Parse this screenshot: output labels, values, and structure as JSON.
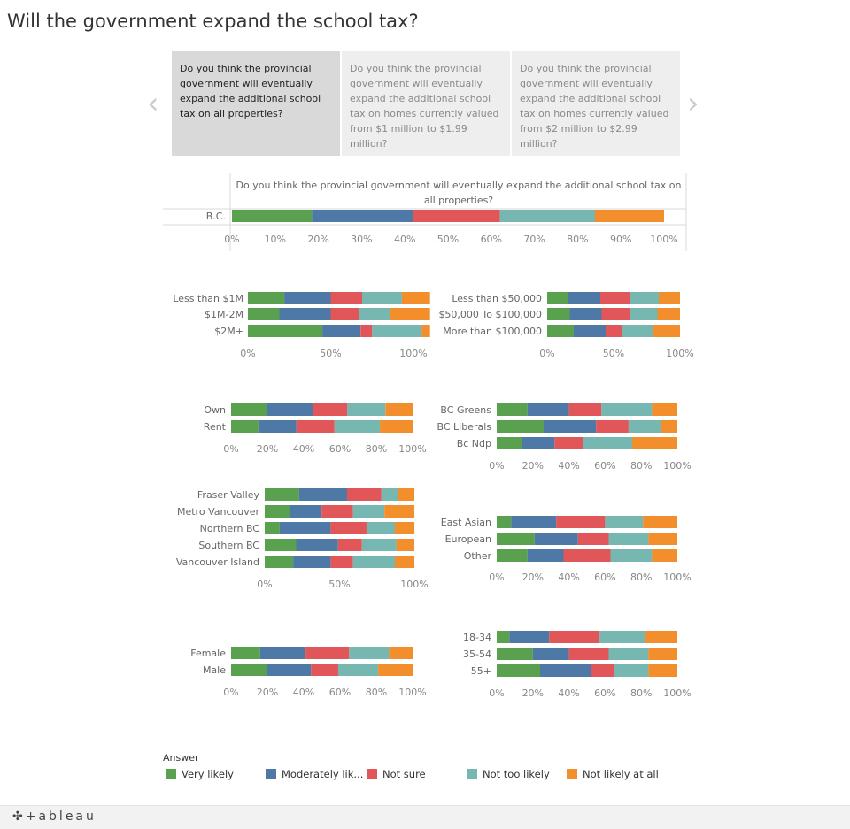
{
  "title": "Will the government expand the school tax?",
  "story_points": [
    "Do you think the provincial government will eventually expand the additional school tax on all properties?",
    "Do you think the provincial government will eventually expand the additional school tax on homes currently valued from $1 million to $1.99 million?",
    "Do you think the provincial government will eventually expand the additional school tax on homes currently valued from $2 million to $2.99 million?"
  ],
  "nav": {
    "prev": "‹",
    "next": "›"
  },
  "colors": {
    "very_likely": "#59a14f",
    "moderately": "#4e79a7",
    "not_sure": "#e15759",
    "not_too": "#76b7b2",
    "not_at_all": "#f28e2b"
  },
  "legend": {
    "title": "Answer",
    "items": [
      "Very likely",
      "Moderately lik...",
      "Not sure",
      "Not too likely",
      "Not likely at all"
    ]
  },
  "footer": {
    "logo": "+ableau"
  },
  "chart_data": [
    {
      "type": "bar",
      "id": "bc",
      "title": "Do you think the provincial government will eventually expand the additional school tax on all properties?",
      "categories": [
        "B.C."
      ],
      "series": [
        {
          "name": "Very likely",
          "values": [
            18.5
          ]
        },
        {
          "name": "Moderately lik...",
          "values": [
            23.5
          ]
        },
        {
          "name": "Not sure",
          "values": [
            20
          ]
        },
        {
          "name": "Not too likely",
          "values": [
            22
          ]
        },
        {
          "name": "Not likely at all",
          "values": [
            16
          ]
        }
      ],
      "ticks": [
        "0%",
        "10%",
        "20%",
        "30%",
        "40%",
        "50%",
        "60%",
        "70%",
        "80%",
        "90%",
        "100%"
      ],
      "xlim": [
        0,
        100
      ]
    },
    {
      "type": "bar",
      "id": "value",
      "categories": [
        "Less than $1M",
        "$1M-2M",
        "$2M+"
      ],
      "series": [
        {
          "name": "Very likely",
          "values": [
            22,
            19,
            45
          ]
        },
        {
          "name": "Moderately lik...",
          "values": [
            28,
            31,
            23
          ]
        },
        {
          "name": "Not sure",
          "values": [
            19,
            17,
            7
          ]
        },
        {
          "name": "Not too likely",
          "values": [
            24,
            19,
            30
          ]
        },
        {
          "name": "Not likely at all",
          "values": [
            17,
            24,
            5
          ]
        }
      ],
      "ticks": [
        "0%",
        "50%",
        "100%"
      ],
      "xlim": [
        0,
        100
      ]
    },
    {
      "type": "bar",
      "id": "income",
      "categories": [
        "Less than $50,000",
        "$50,000 To $100,000",
        "More than $100,000"
      ],
      "series": [
        {
          "name": "Very likely",
          "values": [
            16,
            17,
            20
          ]
        },
        {
          "name": "Moderately lik...",
          "values": [
            24,
            24,
            24
          ]
        },
        {
          "name": "Not sure",
          "values": [
            22,
            21,
            12
          ]
        },
        {
          "name": "Not too likely",
          "values": [
            22,
            21,
            24
          ]
        },
        {
          "name": "Not likely at all",
          "values": [
            16,
            17,
            20
          ]
        }
      ],
      "ticks": [
        "0%",
        "50%",
        "100%"
      ],
      "xlim": [
        0,
        100
      ]
    },
    {
      "type": "bar",
      "id": "tenure",
      "categories": [
        "Own",
        "Rent"
      ],
      "series": [
        {
          "name": "Very likely",
          "values": [
            20,
            15
          ]
        },
        {
          "name": "Moderately lik...",
          "values": [
            25,
            21
          ]
        },
        {
          "name": "Not sure",
          "values": [
            19,
            21
          ]
        },
        {
          "name": "Not too likely",
          "values": [
            21,
            25
          ]
        },
        {
          "name": "Not likely at all",
          "values": [
            15,
            18
          ]
        }
      ],
      "ticks": [
        "0%",
        "20%",
        "40%",
        "60%",
        "80%",
        "100%"
      ],
      "xlim": [
        0,
        100
      ]
    },
    {
      "type": "bar",
      "id": "party",
      "categories": [
        "BC Greens",
        "BC Liberals",
        "Bc Ndp"
      ],
      "series": [
        {
          "name": "Very likely",
          "values": [
            17,
            26,
            14
          ]
        },
        {
          "name": "Moderately lik...",
          "values": [
            23,
            29,
            18
          ]
        },
        {
          "name": "Not sure",
          "values": [
            18,
            18,
            16
          ]
        },
        {
          "name": "Not too likely",
          "values": [
            28,
            18,
            27
          ]
        },
        {
          "name": "Not likely at all",
          "values": [
            14,
            9,
            25
          ]
        }
      ],
      "ticks": [
        "0%",
        "20%",
        "40%",
        "60%",
        "80%",
        "100%"
      ],
      "xlim": [
        0,
        100
      ]
    },
    {
      "type": "bar",
      "id": "region",
      "categories": [
        "Fraser Valley",
        "Metro Vancouver",
        "Northern BC",
        "Southern BC",
        "Vancouver Island"
      ],
      "series": [
        {
          "name": "Very likely",
          "values": [
            23,
            17,
            10,
            21,
            19
          ]
        },
        {
          "name": "Moderately lik...",
          "values": [
            32,
            21,
            34,
            28,
            25
          ]
        },
        {
          "name": "Not sure",
          "values": [
            23,
            21,
            24,
            16,
            15
          ]
        },
        {
          "name": "Not too likely",
          "values": [
            11,
            21,
            19,
            23,
            28
          ]
        },
        {
          "name": "Not likely at all",
          "values": [
            11,
            20,
            13,
            12,
            13
          ]
        }
      ],
      "ticks": [
        "0%",
        "50%",
        "100%"
      ],
      "xlim": [
        0,
        100
      ]
    },
    {
      "type": "bar",
      "id": "ethnicity",
      "categories": [
        "East Asian",
        "European",
        "Other"
      ],
      "series": [
        {
          "name": "Very likely",
          "values": [
            8,
            21,
            17
          ]
        },
        {
          "name": "Moderately lik...",
          "values": [
            25,
            24,
            20
          ]
        },
        {
          "name": "Not sure",
          "values": [
            27,
            17,
            26
          ]
        },
        {
          "name": "Not too likely",
          "values": [
            21,
            22,
            23
          ]
        },
        {
          "name": "Not likely at all",
          "values": [
            19,
            16,
            14
          ]
        }
      ],
      "ticks": [
        "0%",
        "20%",
        "40%",
        "60%",
        "80%",
        "100%"
      ],
      "xlim": [
        0,
        100
      ]
    },
    {
      "type": "bar",
      "id": "gender",
      "categories": [
        "Female",
        "Male"
      ],
      "series": [
        {
          "name": "Very likely",
          "values": [
            16,
            20
          ]
        },
        {
          "name": "Moderately lik...",
          "values": [
            25,
            24
          ]
        },
        {
          "name": "Not sure",
          "values": [
            24,
            15
          ]
        },
        {
          "name": "Not too likely",
          "values": [
            22,
            22
          ]
        },
        {
          "name": "Not likely at all",
          "values": [
            13,
            19
          ]
        }
      ],
      "ticks": [
        "0%",
        "20%",
        "40%",
        "60%",
        "80%",
        "100%"
      ],
      "xlim": [
        0,
        100
      ]
    },
    {
      "type": "bar",
      "id": "age",
      "categories": [
        "18-34",
        "35-54",
        "55+"
      ],
      "series": [
        {
          "name": "Very likely",
          "values": [
            7,
            20,
            24
          ]
        },
        {
          "name": "Moderately lik...",
          "values": [
            22,
            20,
            28
          ]
        },
        {
          "name": "Not sure",
          "values": [
            28,
            22,
            13
          ]
        },
        {
          "name": "Not too likely",
          "values": [
            25,
            22,
            19
          ]
        },
        {
          "name": "Not likely at all",
          "values": [
            18,
            16,
            16
          ]
        }
      ],
      "ticks": [
        "0%",
        "20%",
        "40%",
        "60%",
        "80%",
        "100%"
      ],
      "xlim": [
        0,
        100
      ]
    }
  ]
}
